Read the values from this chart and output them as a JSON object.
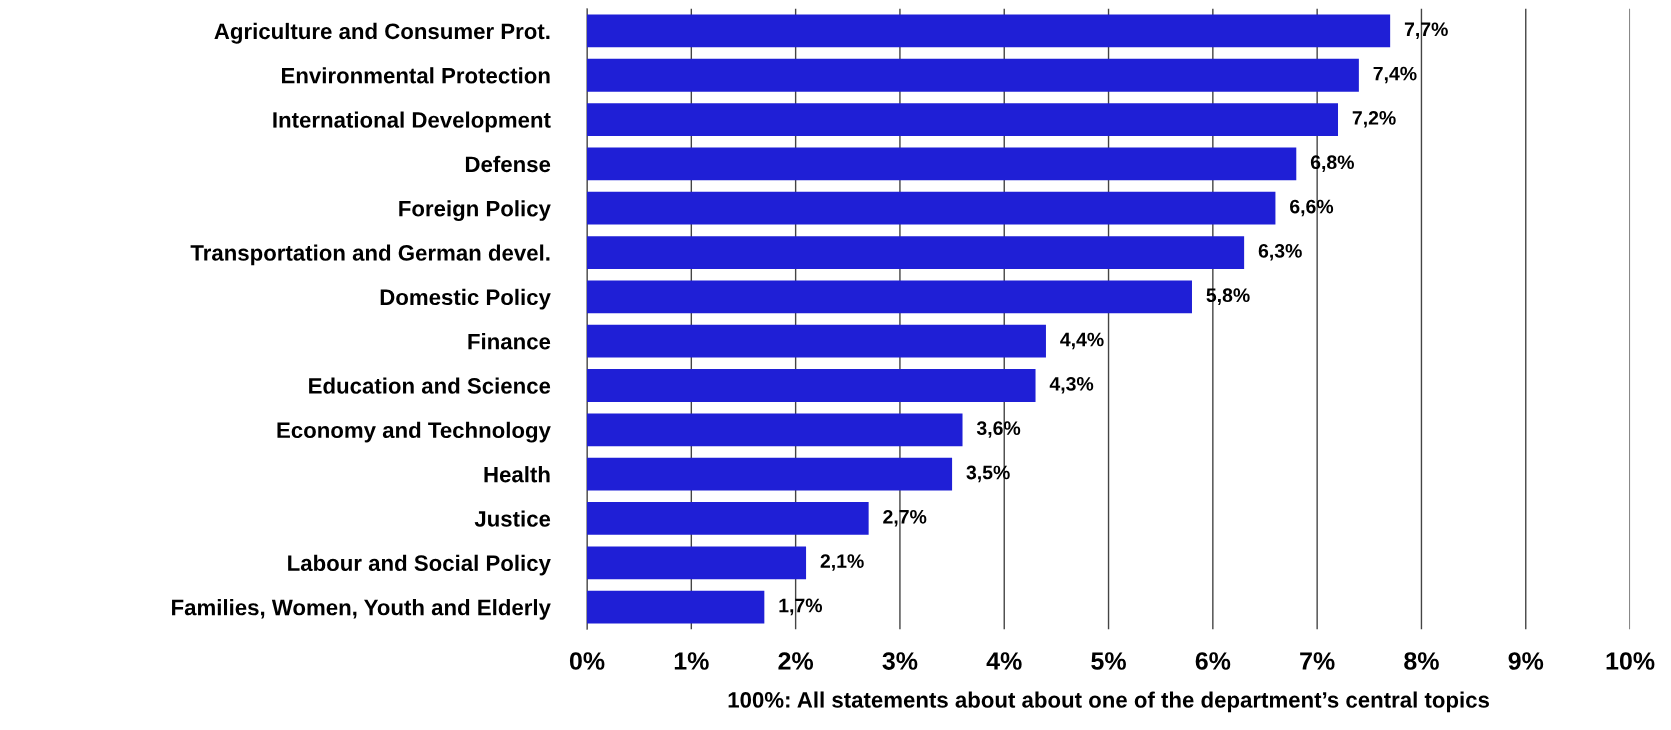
{
  "chart_data": {
    "type": "bar",
    "orientation": "horizontal",
    "xlabel": "100%: All statements about about one of the department’s central topics",
    "categories": [
      "Agriculture and Consumer Prot.",
      "Environmental Protection",
      "International Development",
      "Defense",
      "Foreign Policy",
      "Transportation and German devel.",
      "Domestic Policy",
      "Finance",
      "Education and Science",
      "Economy and Technology",
      "Health",
      "Justice",
      "Labour and Social Policy",
      "Families, Women, Youth and Elderly"
    ],
    "values": [
      7.7,
      7.4,
      7.2,
      6.8,
      6.6,
      6.3,
      5.8,
      4.4,
      4.3,
      3.6,
      3.5,
      2.7,
      2.1,
      1.7
    ],
    "value_labels": [
      "7,7%",
      "7,4%",
      "7,2%",
      "6,8%",
      "6,6%",
      "6,3%",
      "5,8%",
      "4,4%",
      "4,3%",
      "3,6%",
      "3,5%",
      "2,7%",
      "2,1%",
      "1,7%"
    ],
    "color": "#1f1fd6",
    "xlim": [
      0,
      10
    ],
    "xticks": [
      {
        "value": 0,
        "label": "0%"
      },
      {
        "value": 1,
        "label": "1%"
      },
      {
        "value": 2,
        "label": "2%"
      },
      {
        "value": 3,
        "label": "3%"
      },
      {
        "value": 4,
        "label": "4%"
      },
      {
        "value": 5,
        "label": "5%"
      },
      {
        "value": 6,
        "label": "6%"
      },
      {
        "value": 7,
        "label": "7%"
      },
      {
        "value": 8,
        "label": "8%"
      },
      {
        "value": 9,
        "label": "9%"
      },
      {
        "value": 10,
        "label": "10%"
      }
    ],
    "grid": "x",
    "legend": false
  }
}
